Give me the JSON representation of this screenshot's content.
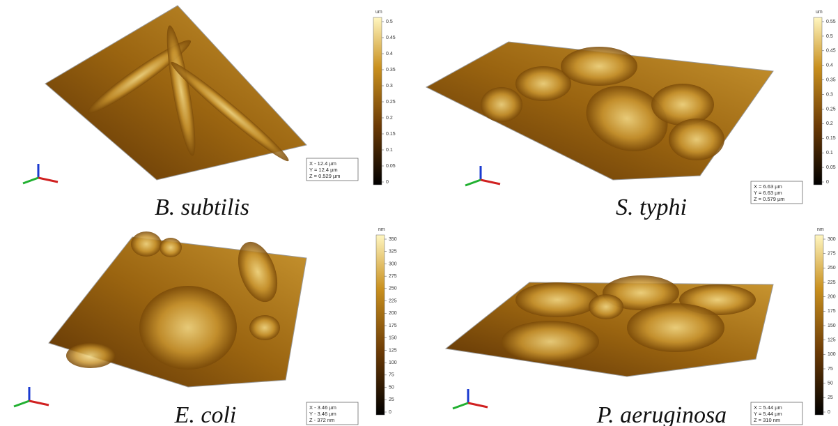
{
  "panels": [
    {
      "label": "B. subtilis",
      "unit": "um",
      "ticks": [
        "0.5",
        "0.45",
        "0.4",
        "0.35",
        "0.3",
        "0.25",
        "0.2",
        "0.15",
        "0.1",
        "0.05",
        "0"
      ],
      "info": [
        "X - 12.4 µm",
        "Y = 12.4 µm",
        "Z = 0.529 µm"
      ]
    },
    {
      "label": "S. typhi",
      "unit": "um",
      "ticks": [
        "0.55",
        "0.5",
        "0.45",
        "0.4",
        "0.35",
        "0.3",
        "0.25",
        "0.2",
        "0.15",
        "0.1",
        "0.05",
        "0"
      ],
      "info": [
        "X = 6.63 µm",
        "Y = 6.63 µm",
        "Z = 0.579 µm"
      ]
    },
    {
      "label": "E. coli",
      "unit": "nm",
      "ticks": [
        "350",
        "325",
        "300",
        "275",
        "250",
        "225",
        "200",
        "175",
        "150",
        "125",
        "100",
        "75",
        "50",
        "25",
        "0"
      ],
      "info": [
        "X - 3.46 µm",
        "Y - 3.46 µm",
        "Z - 372 nm"
      ]
    },
    {
      "label": "P. aeruginosa",
      "unit": "nm",
      "ticks": [
        "300",
        "275",
        "250",
        "225",
        "200",
        "175",
        "150",
        "125",
        "100",
        "75",
        "50",
        "25",
        "0"
      ],
      "info": [
        "X = 5.44 µm",
        "Y = 5.44 µm",
        "Z = 310 nm"
      ]
    }
  ]
}
